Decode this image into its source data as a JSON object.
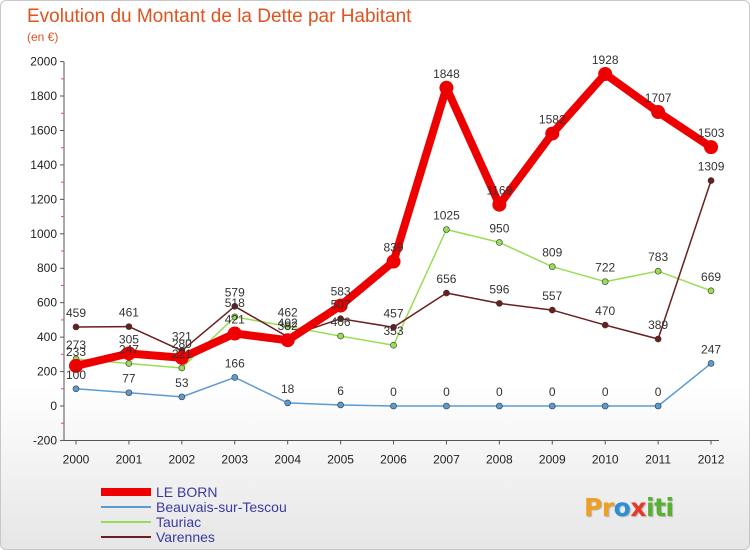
{
  "title": "Evolution du Montant de la Dette par Habitant",
  "subtitle": "(en €)",
  "logo": {
    "text": "Proxiti",
    "letters": [
      {
        "ch": "P",
        "color": "#f0a020"
      },
      {
        "ch": "r",
        "color": "#f0a020"
      },
      {
        "ch": "o",
        "color": "#2a8fd6"
      },
      {
        "ch": "x",
        "color": "#e8382a"
      },
      {
        "ch": "i",
        "color": "#58b032"
      },
      {
        "ch": "t",
        "color": "#58b032"
      },
      {
        "ch": "i",
        "color": "#58b032"
      }
    ]
  },
  "chart_data": {
    "type": "line",
    "title": "Evolution du Montant de la Dette par Habitant",
    "subtitle": "(en €)",
    "x": [
      "2000",
      "2001",
      "2002",
      "2003",
      "2004",
      "2005",
      "2006",
      "2007",
      "2008",
      "2009",
      "2010",
      "2011",
      "2012"
    ],
    "ylim": [
      -200,
      2000
    ],
    "yticks": [
      -200,
      0,
      200,
      400,
      600,
      800,
      1000,
      1200,
      1400,
      1600,
      1800,
      2000
    ],
    "grid": false,
    "legend_position": "bottom-left",
    "series": [
      {
        "name": "LE BORN",
        "color": "#ee0000",
        "width": 8,
        "marker": 7,
        "values": [
          233,
          305,
          280,
          421,
          382,
          583,
          839,
          1848,
          1169,
          1582,
          1928,
          1707,
          1503
        ],
        "labels": [
          "233",
          "305",
          "280",
          "421",
          "382",
          "583",
          "839",
          "1848",
          "1169",
          "1582",
          "1928",
          "1707",
          "1503"
        ]
      },
      {
        "name": "Beauvais-sur-Tescou",
        "color": "#5c9bd1",
        "width": 1.5,
        "marker": 3,
        "values": [
          100,
          77,
          53,
          166,
          18,
          6,
          0,
          0,
          0,
          0,
          0,
          0,
          247
        ],
        "labels": [
          "100",
          "77",
          "53",
          "166",
          "18",
          "6",
          "0",
          "0",
          "0",
          "0",
          "0",
          "0",
          "247"
        ]
      },
      {
        "name": "Tauriac",
        "color": "#99dd55",
        "width": 1.5,
        "marker": 3,
        "values": [
          273,
          247,
          221,
          518,
          462,
          406,
          353,
          1025,
          950,
          809,
          722,
          783,
          669
        ],
        "labels": [
          "273",
          "247",
          "221",
          "518",
          "462",
          "406",
          "353",
          "1025",
          "950",
          "809",
          "722",
          "783",
          "669"
        ]
      },
      {
        "name": "Varennes",
        "color": "#6b1e1e",
        "width": 1.5,
        "marker": 3,
        "values": [
          459,
          461,
          321,
          579,
          402,
          507,
          457,
          656,
          596,
          557,
          470,
          389,
          1309
        ],
        "labels": [
          "459",
          "461",
          "321",
          "579",
          "402",
          "507",
          "457",
          "656",
          "596",
          "557",
          "470",
          "389",
          "1309"
        ]
      }
    ]
  }
}
